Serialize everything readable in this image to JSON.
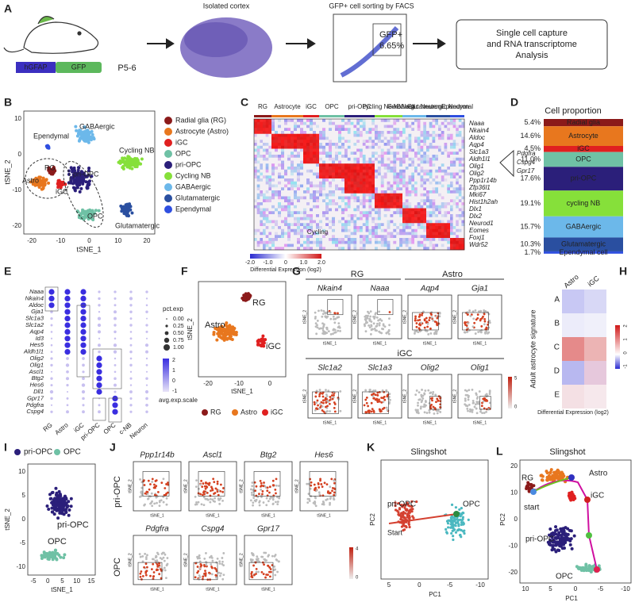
{
  "A": {
    "letter": "A",
    "promoter": "hGFAP",
    "reporter": "GFP",
    "age": "P5-6",
    "cortex_title": "Isolated cortex",
    "facs_title": "GFP+ cell sorting by FACS",
    "gate": "GFP+",
    "gate_pct": "6.65%",
    "capture_lines": [
      "Single cell capture",
      "and RNA transcriptome",
      "Analysis"
    ]
  },
  "B": {
    "letter": "B",
    "xlabel": "tSNE_1",
    "ylabel": "tSNE_2",
    "xticks": [
      "-20",
      "-10",
      "0",
      "10",
      "20"
    ],
    "yticks": [
      "10",
      "0",
      "-10",
      "-20"
    ],
    "clusters": [
      "Ependymal",
      "GABAergic",
      "Cycling NB",
      "RG",
      "Astro",
      "iGC",
      "pri-OPC",
      "OPC",
      "Glutamatergic"
    ],
    "legend": [
      {
        "name": "Radial glia (RG)",
        "color": "#8b1a1a"
      },
      {
        "name": "Astrocyte (Astro)",
        "color": "#e8771e"
      },
      {
        "name": "iGC",
        "color": "#e02020"
      },
      {
        "name": "OPC",
        "color": "#6fc1a5"
      },
      {
        "name": "pri-OPC",
        "color": "#2b1f7a"
      },
      {
        "name": "Cycling NB",
        "color": "#86e03a"
      },
      {
        "name": "GABAergic",
        "color": "#6cb8ea"
      },
      {
        "name": "Glutamatergic",
        "color": "#2a4fa0"
      },
      {
        "name": "Ependymal",
        "color": "#2f4fe0"
      }
    ]
  },
  "C": {
    "letter": "C",
    "columns": [
      "RG",
      "Astrocyte",
      "iGC",
      "OPC",
      "pri-OPC",
      "cycling Neuroblast",
      "GABAergic Neuron",
      "Glutamatergic Neuron",
      "Ependymal"
    ],
    "genes": [
      "Naaa",
      "Nkain4",
      "Aldoc",
      "Aqp4",
      "Slc1a3",
      "Aldh1l1",
      "Olig1",
      "Olig2",
      "Ppp1r14b",
      "Zfp36l1",
      "Mki67",
      "Hist1h2ah",
      "Dlx1",
      "Dlx2",
      "Neurod1",
      "Eomes",
      "Foxj1",
      "Wdr52"
    ],
    "callout_genes": [
      "Pdgfra",
      "Cspg4",
      "Gpr17"
    ],
    "annotation": "Cycling",
    "scale_ticks": [
      "-2.0",
      "-1.0",
      "0",
      "1.0",
      "2.0"
    ],
    "scale_label": "Differential Expression (log2)"
  },
  "D": {
    "letter": "D",
    "title": "Cell proportion",
    "segments": [
      {
        "name": "Radial glia",
        "value": 5.4,
        "value_label": "5.4%",
        "color": "#8b1a1a"
      },
      {
        "name": "Astrocyte",
        "value": 14.6,
        "value_label": "14.6%",
        "color": "#e8771e"
      },
      {
        "name": "iGC",
        "value": 4.5,
        "value_label": "4.5%",
        "color": "#e02020"
      },
      {
        "name": "OPC",
        "value": 11.0,
        "value_label": "11.0%",
        "color": "#6fc1a5"
      },
      {
        "name": "pri-OPC",
        "value": 17.6,
        "value_label": "17.6%",
        "color": "#2b1f7a"
      },
      {
        "name": "cycling NB",
        "value": 19.1,
        "value_label": "19.1%",
        "color": "#86e03a"
      },
      {
        "name": "GABAergic",
        "value": 15.7,
        "value_label": "15.7%",
        "color": "#6cb8ea"
      },
      {
        "name": "Glutamatergic",
        "value": 10.3,
        "value_label": "10.3%",
        "color": "#2a4fa0"
      },
      {
        "name": "Ependymal cell",
        "value": 1.7,
        "value_label": "1.7%",
        "color": "#2f4fe0"
      }
    ]
  },
  "E": {
    "letter": "E",
    "genes": [
      "Naaa",
      "Nkain4",
      "Aldoc",
      "Gja1",
      "Slc1a3",
      "Slc1a2",
      "Aqp4",
      "Id3",
      "Hes5",
      "Aldh1l1",
      "Olig2",
      "Olig1",
      "Ascl1",
      "Btg2",
      "Hes6",
      "Dll1",
      "Gpr17",
      "Pdgfra",
      "Cspg4"
    ],
    "groups": [
      "RG",
      "Astro",
      "iGC",
      "pri-OPC",
      "OPC",
      "c-NB",
      "Neuron"
    ],
    "size_title": "pct.exp",
    "size_ticks": [
      "0.00",
      "0.25",
      "0.50",
      "0.75",
      "1.00"
    ],
    "color_title": "avg.exp.scale",
    "color_ticks": [
      "2",
      "1",
      "0",
      "-1"
    ]
  },
  "F": {
    "letter": "F",
    "xlabel": "tSNE_1",
    "ylabel": "tSNE_2",
    "xticks": [
      "-20",
      "-10",
      "0"
    ],
    "labels": [
      "RG",
      "Astro",
      "iGC"
    ],
    "legend": [
      {
        "name": "RG",
        "color": "#8b1a1a"
      },
      {
        "name": "Astro",
        "color": "#e8771e"
      },
      {
        "name": "iGC",
        "color": "#e02020"
      }
    ]
  },
  "G": {
    "letter": "G",
    "groups": [
      "RG",
      "Astro",
      "iGC"
    ],
    "genes": [
      "Nkain4",
      "Naaa",
      "Aqp4",
      "Gja1",
      "Slc1a2",
      "Slc1a3",
      "Olig2",
      "Olig1"
    ],
    "axis_x": "tSNE_1",
    "axis_y": "tSNE_2",
    "scale_ticks": [
      "5",
      "0"
    ]
  },
  "H": {
    "letter": "H",
    "columns": [
      "Astro",
      "iGC"
    ],
    "rows": [
      "A",
      "B",
      "C",
      "D",
      "E"
    ],
    "ylabel": "Adult astrocyte signature",
    "scale_label": "Differential Expression (log2)",
    "scale_ticks": [
      "-1",
      "0",
      "1",
      "2"
    ]
  },
  "I": {
    "letter": "I",
    "legend": [
      {
        "name": "pri-OPC",
        "color": "#2b1f7a"
      },
      {
        "name": "OPC",
        "color": "#6fc1a5"
      }
    ],
    "labels": [
      "pri-OPC",
      "OPC"
    ],
    "xlabel": "tSNE_1",
    "ylabel": "tSNE_2",
    "xticks": [
      "-5",
      "0",
      "5",
      "10",
      "15"
    ],
    "yticks": [
      "10",
      "5",
      "0",
      "-5",
      "-10"
    ]
  },
  "J": {
    "letter": "J",
    "rows": [
      "pri-OPC",
      "OPC"
    ],
    "genes": [
      "Ppp1r14b",
      "Ascl1",
      "Btg2",
      "Hes6",
      "Pdgfra",
      "Cspg4",
      "Gpr17"
    ],
    "axis_x": "tSNE_1",
    "axis_y": "tSNE_2",
    "scale_ticks": [
      "4",
      "0"
    ]
  },
  "K": {
    "letter": "K",
    "title": "Slingshot",
    "xlabel": "PC1",
    "ylabel": "PC2",
    "xticks": [
      "5",
      "0",
      "-5",
      "-10"
    ],
    "labels": [
      "pri-OPC",
      "Start",
      "OPC"
    ]
  },
  "L": {
    "letter": "L",
    "title": "Slingshot",
    "xlabel": "PC1",
    "ylabel": "PC2",
    "xticks": [
      "10",
      "5",
      "0",
      "-5",
      "-10"
    ],
    "yticks": [
      "20",
      "10",
      "0",
      "-10",
      "-20"
    ],
    "labels": [
      "RG",
      "Astro",
      "iGC",
      "start",
      "pri-OPC",
      "OPC"
    ]
  }
}
